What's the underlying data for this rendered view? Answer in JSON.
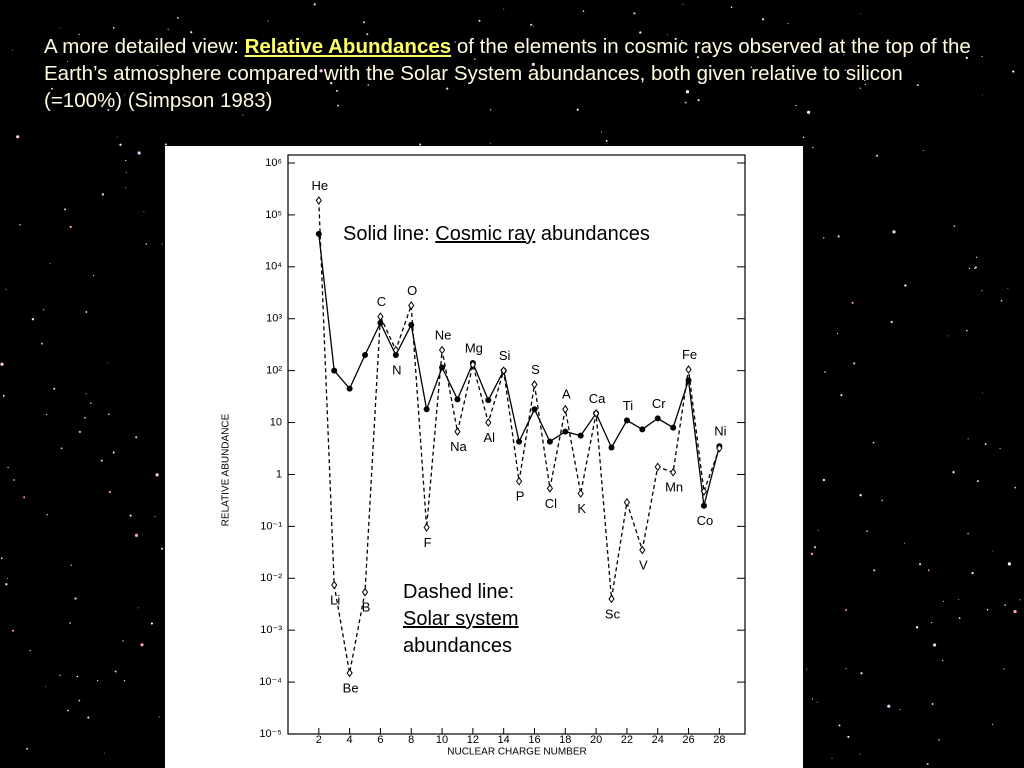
{
  "chart_data": {
    "type": "line",
    "title": [
      "A more detailed view:",
      "Relative Abundances",
      "of the elements in cosmic rays observed at the top of the Earth’s atmosphere compared with the Solar System abundances, both given relative to silicon (=100%) (Simpson 1983)"
    ],
    "x_label": "NUCLEAR CHARGE NUMBER",
    "y_label": "RELATIVE ABUNDANCE",
    "x": [
      2,
      3,
      4,
      5,
      6,
      7,
      8,
      9,
      10,
      11,
      12,
      13,
      14,
      15,
      16,
      17,
      18,
      19,
      20,
      21,
      22,
      23,
      24,
      25,
      26,
      27,
      28
    ],
    "element_labels": [
      "He",
      "Li",
      "Be",
      "B",
      "C",
      "N",
      "O",
      "F",
      "Ne",
      "Na",
      "Mg",
      "Al",
      "Si",
      "P",
      "S",
      "Cl",
      "A",
      "K",
      "Ca",
      "Sc",
      "Ti",
      "V",
      "Cr",
      "Mn",
      "Fe",
      "Co",
      "Ni"
    ],
    "series": [
      {
        "name": "Cosmic ray",
        "color": "#000000",
        "dash": false,
        "values": [
          43000,
          100,
          45,
          200,
          830,
          200,
          760,
          18,
          115,
          28,
          140,
          27,
          100,
          4.3,
          18,
          4.3,
          6.7,
          5.6,
          15,
          3.3,
          11,
          7.4,
          12,
          8,
          65,
          0.25,
          3.5
        ]
      },
      {
        "name": "Solar system",
        "color": "#000000",
        "dash": true,
        "values": [
          190000,
          0.0074,
          0.00015,
          0.0054,
          1100,
          250,
          1800,
          0.095,
          250,
          6.7,
          130,
          10,
          100,
          0.74,
          54,
          0.54,
          18,
          0.43,
          15,
          0.004,
          0.29,
          0.035,
          1.4,
          1.1,
          105,
          0.47,
          3.2
        ]
      }
    ],
    "notes": [
      [
        "Solid line:",
        "abundances"
      ],
      [
        "Dashed line:",
        "abundances"
      ]
    ],
    "xlim": [
      0,
      29.6
    ],
    "xticks": [
      2,
      4,
      6,
      8,
      10,
      12,
      14,
      16,
      18,
      20,
      22,
      24,
      26,
      28
    ],
    "ylim": [
      1e-05,
      1000000
    ],
    "yscale": "log",
    "yticks": [
      {
        "value": 1e-05,
        "label": "10⁻⁵"
      },
      {
        "value": 0.0001,
        "label": "10⁻⁴"
      },
      {
        "value": 0.001,
        "label": "10⁻³"
      },
      {
        "value": 0.01,
        "label": "10⁻²"
      },
      {
        "value": 0.1,
        "label": "10⁻¹"
      },
      1,
      10,
      {
        "value": 100,
        "label": "10²"
      },
      {
        "value": 1000,
        "label": "10³"
      },
      {
        "value": 10000,
        "label": "10⁴"
      },
      {
        "value": 100000,
        "label": "10⁵"
      },
      {
        "value": 1000000,
        "label": "10⁶"
      }
    ],
    "grid": false
  }
}
